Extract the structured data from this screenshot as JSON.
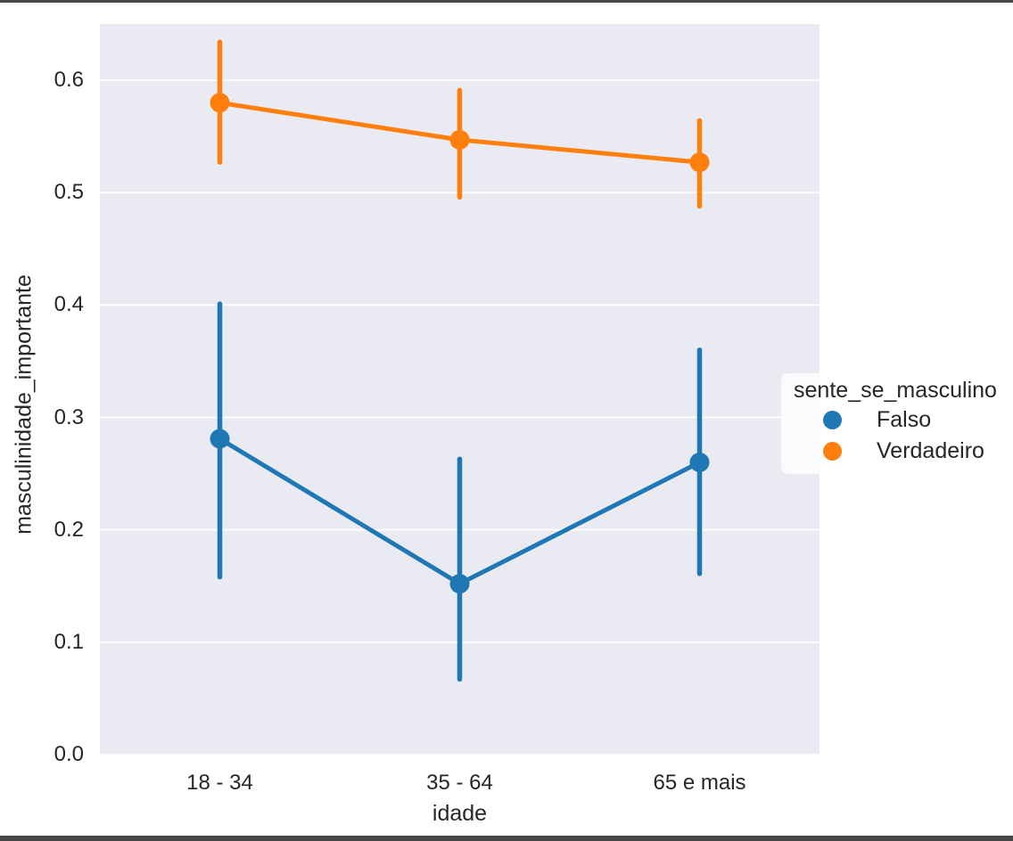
{
  "figure": {
    "background": "#ffffff",
    "axes_background": "#eaeaf2",
    "grid_color": "#ffffff",
    "text_color": "#262626"
  },
  "chart_data": {
    "type": "line",
    "subtype": "point-plot-with-error-bars",
    "title": "",
    "xlabel": "idade",
    "ylabel": "masculinidade_importante",
    "categories": [
      "18 - 34",
      "35 - 64",
      "65 e mais"
    ],
    "yticks": [
      0.0,
      0.1,
      0.2,
      0.3,
      0.4,
      0.5,
      0.6
    ],
    "ytick_labels": [
      "0.0",
      "0.1",
      "0.2",
      "0.3",
      "0.4",
      "0.5",
      "0.6"
    ],
    "ylim": [
      0,
      0.65
    ],
    "grid": true,
    "legend": {
      "title": "sente_se_masculino",
      "position": "right-of-axes",
      "entries": [
        {
          "label": "Falso",
          "color": "#1f77b4"
        },
        {
          "label": "Verdadeiro",
          "color": "#ff7f0e"
        }
      ]
    },
    "series": [
      {
        "name": "Falso",
        "color": "#1f77b4",
        "values": [
          0.281,
          0.152,
          0.26
        ],
        "ci": [
          [
            0.158,
            0.401
          ],
          [
            0.067,
            0.263
          ],
          [
            0.161,
            0.36
          ]
        ]
      },
      {
        "name": "Verdadeiro",
        "color": "#ff7f0e",
        "values": [
          0.58,
          0.547,
          0.527
        ],
        "ci": [
          [
            0.527,
            0.634
          ],
          [
            0.496,
            0.591
          ],
          [
            0.488,
            0.564
          ]
        ]
      }
    ]
  }
}
